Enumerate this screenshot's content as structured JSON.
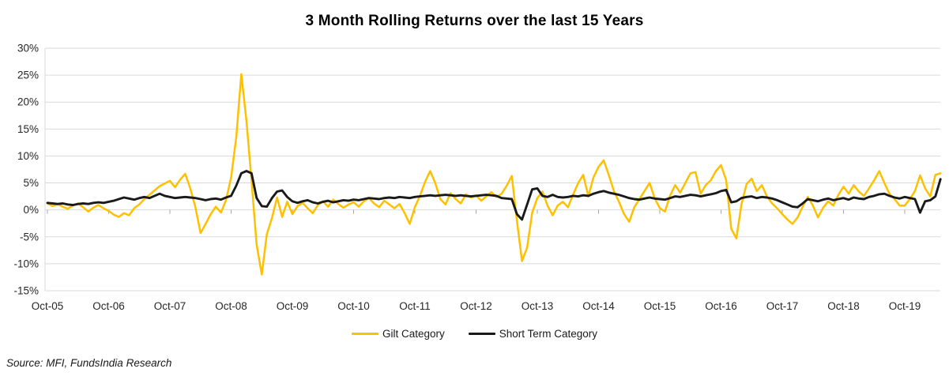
{
  "title": "3 Month Rolling Returns over the last 15 Years",
  "source": "Source: MFI, FundsIndia Research",
  "chart_data": {
    "type": "line",
    "title": "3 Month Rolling Returns over the last 15 Years",
    "grid": "horizontal",
    "legend_position": "bottom",
    "ylim": [
      -15,
      30
    ],
    "y_ticks": [
      30,
      25,
      20,
      15,
      10,
      5,
      0,
      -5,
      -10,
      -15
    ],
    "y_tick_suffix": "%",
    "x_tick_labels": [
      "Oct-05",
      "Oct-06",
      "Oct-07",
      "Oct-08",
      "Oct-09",
      "Oct-10",
      "Oct-11",
      "Oct-12",
      "Oct-13",
      "Oct-14",
      "Oct-15",
      "Oct-16",
      "Oct-17",
      "Oct-18",
      "Oct-19"
    ],
    "x_tick_month_indices": [
      0,
      12,
      24,
      36,
      48,
      60,
      72,
      84,
      96,
      108,
      120,
      132,
      144,
      156,
      168
    ],
    "x_unit": "months since Oct-2005, monthly points, values in percent",
    "colors": {
      "gilt": "#FFC000",
      "short_term": "#1A1A1A",
      "gridline": "#D9D9D9",
      "tick": "#A6A6A6"
    },
    "series": [
      {
        "name": "Gilt Category",
        "color": "#FFC000",
        "values": [
          1.2,
          0.7,
          1.1,
          0.6,
          0.2,
          0.8,
          1.2,
          0.5,
          -0.3,
          0.4,
          0.9,
          0.3,
          -0.2,
          -0.9,
          -1.3,
          -0.6,
          -1.0,
          0.3,
          1.0,
          2.0,
          2.8,
          3.6,
          4.4,
          4.9,
          5.4,
          4.2,
          5.6,
          6.7,
          4.0,
          0.5,
          -4.3,
          -2.6,
          -0.8,
          0.6,
          -0.5,
          1.8,
          6.0,
          13.5,
          25.2,
          16.5,
          5.5,
          -6.5,
          -12.0,
          -4.5,
          -1.5,
          2.3,
          -1.3,
          1.5,
          -0.8,
          0.7,
          1.3,
          0.3,
          -0.6,
          0.9,
          1.6,
          0.6,
          1.9,
          1.1,
          0.4,
          1.0,
          1.4,
          0.6,
          1.6,
          2.2,
          1.2,
          0.5,
          1.7,
          1.0,
          0.3,
          1.1,
          -0.6,
          -2.6,
          0.5,
          2.6,
          5.2,
          7.2,
          5.0,
          2.0,
          1.0,
          3.1,
          2.0,
          1.2,
          2.9,
          2.3,
          2.7,
          1.7,
          2.5,
          3.3,
          2.4,
          3.0,
          4.5,
          6.3,
          -2.0,
          -9.5,
          -7.0,
          -0.5,
          2.2,
          3.4,
          0.8,
          -1.0,
          0.8,
          1.5,
          0.5,
          2.8,
          5.0,
          6.5,
          2.5,
          6.0,
          8.0,
          9.2,
          6.5,
          3.5,
          1.5,
          -0.8,
          -2.2,
          0.5,
          2.0,
          3.5,
          5.0,
          2.2,
          0.3,
          -0.3,
          2.6,
          4.6,
          3.2,
          5.0,
          6.8,
          7.0,
          3.0,
          4.6,
          5.5,
          7.2,
          8.3,
          5.5,
          -3.5,
          -5.3,
          1.0,
          4.8,
          5.8,
          3.5,
          4.6,
          2.5,
          1.2,
          0.3,
          -0.8,
          -1.8,
          -2.6,
          -1.4,
          0.6,
          2.4,
          0.8,
          -1.4,
          0.4,
          1.6,
          0.8,
          2.8,
          4.3,
          3.0,
          4.6,
          3.4,
          2.6,
          4.0,
          5.5,
          7.2,
          5.0,
          3.0,
          2.0,
          0.8,
          0.8,
          2.0,
          3.5,
          6.4,
          4.0,
          2.5,
          6.5,
          6.8
        ]
      },
      {
        "name": "Short Term Category",
        "color": "#1A1A1A",
        "values": [
          1.3,
          1.2,
          1.1,
          1.2,
          1.0,
          0.9,
          1.1,
          1.2,
          1.1,
          1.3,
          1.4,
          1.3,
          1.5,
          1.7,
          2.0,
          2.3,
          2.1,
          1.9,
          2.2,
          2.4,
          2.2,
          2.6,
          3.0,
          2.6,
          2.4,
          2.2,
          2.3,
          2.4,
          2.3,
          2.2,
          2.0,
          1.8,
          2.0,
          2.1,
          1.9,
          2.3,
          2.6,
          4.5,
          6.8,
          7.2,
          6.8,
          2.2,
          0.7,
          0.6,
          2.2,
          3.4,
          3.6,
          2.4,
          1.6,
          1.3,
          1.6,
          1.8,
          1.4,
          1.2,
          1.5,
          1.7,
          1.4,
          1.6,
          1.8,
          1.7,
          1.9,
          1.8,
          2.0,
          2.2,
          2.1,
          2.0,
          2.2,
          2.3,
          2.2,
          2.4,
          2.3,
          2.2,
          2.4,
          2.5,
          2.6,
          2.7,
          2.6,
          2.7,
          2.8,
          2.7,
          2.6,
          2.7,
          2.6,
          2.5,
          2.6,
          2.7,
          2.8,
          2.7,
          2.6,
          2.2,
          2.1,
          2.0,
          -0.8,
          -1.8,
          1.0,
          3.8,
          4.0,
          2.6,
          2.4,
          2.8,
          2.4,
          2.3,
          2.4,
          2.6,
          2.5,
          2.7,
          2.6,
          3.0,
          3.3,
          3.5,
          3.2,
          3.0,
          2.8,
          2.5,
          2.2,
          2.0,
          1.9,
          2.1,
          2.3,
          2.1,
          2.0,
          1.9,
          2.2,
          2.5,
          2.4,
          2.6,
          2.8,
          2.7,
          2.5,
          2.7,
          2.9,
          3.1,
          3.5,
          3.7,
          1.4,
          1.6,
          2.2,
          2.4,
          2.5,
          2.2,
          2.4,
          2.3,
          2.1,
          1.8,
          1.4,
          1.0,
          0.6,
          0.5,
          1.2,
          2.0,
          1.8,
          1.6,
          1.9,
          2.1,
          1.8,
          2.0,
          2.2,
          1.9,
          2.3,
          2.1,
          2.0,
          2.4,
          2.6,
          2.9,
          3.0,
          2.6,
          2.3,
          2.1,
          2.4,
          2.2,
          2.0,
          -0.5,
          1.6,
          1.8,
          2.5,
          5.7
        ]
      }
    ]
  }
}
